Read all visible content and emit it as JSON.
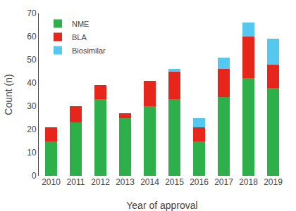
{
  "chart_data": {
    "type": "bar",
    "stacked": true,
    "categories": [
      "2010",
      "2011",
      "2012",
      "2013",
      "2014",
      "2015",
      "2016",
      "2017",
      "2018",
      "2019"
    ],
    "series": [
      {
        "name": "NME",
        "color": "#2db04a",
        "values": [
          15,
          23,
          33,
          25,
          30,
          33,
          15,
          34,
          42,
          38
        ]
      },
      {
        "name": "BLA",
        "color": "#e8251a",
        "values": [
          6,
          7,
          6,
          2,
          11,
          12,
          6,
          12,
          18,
          10
        ]
      },
      {
        "name": "Biosimilar",
        "color": "#55c8f0",
        "values": [
          0,
          0,
          0,
          0,
          0,
          1,
          4,
          5,
          6,
          11
        ]
      }
    ],
    "xlabel": "Year of approval",
    "ylabel": "Count (n)",
    "ylim": [
      0,
      70
    ],
    "yticks": [
      0,
      10,
      20,
      30,
      40,
      50,
      60,
      70
    ],
    "grid": false,
    "legend": "upper left"
  }
}
